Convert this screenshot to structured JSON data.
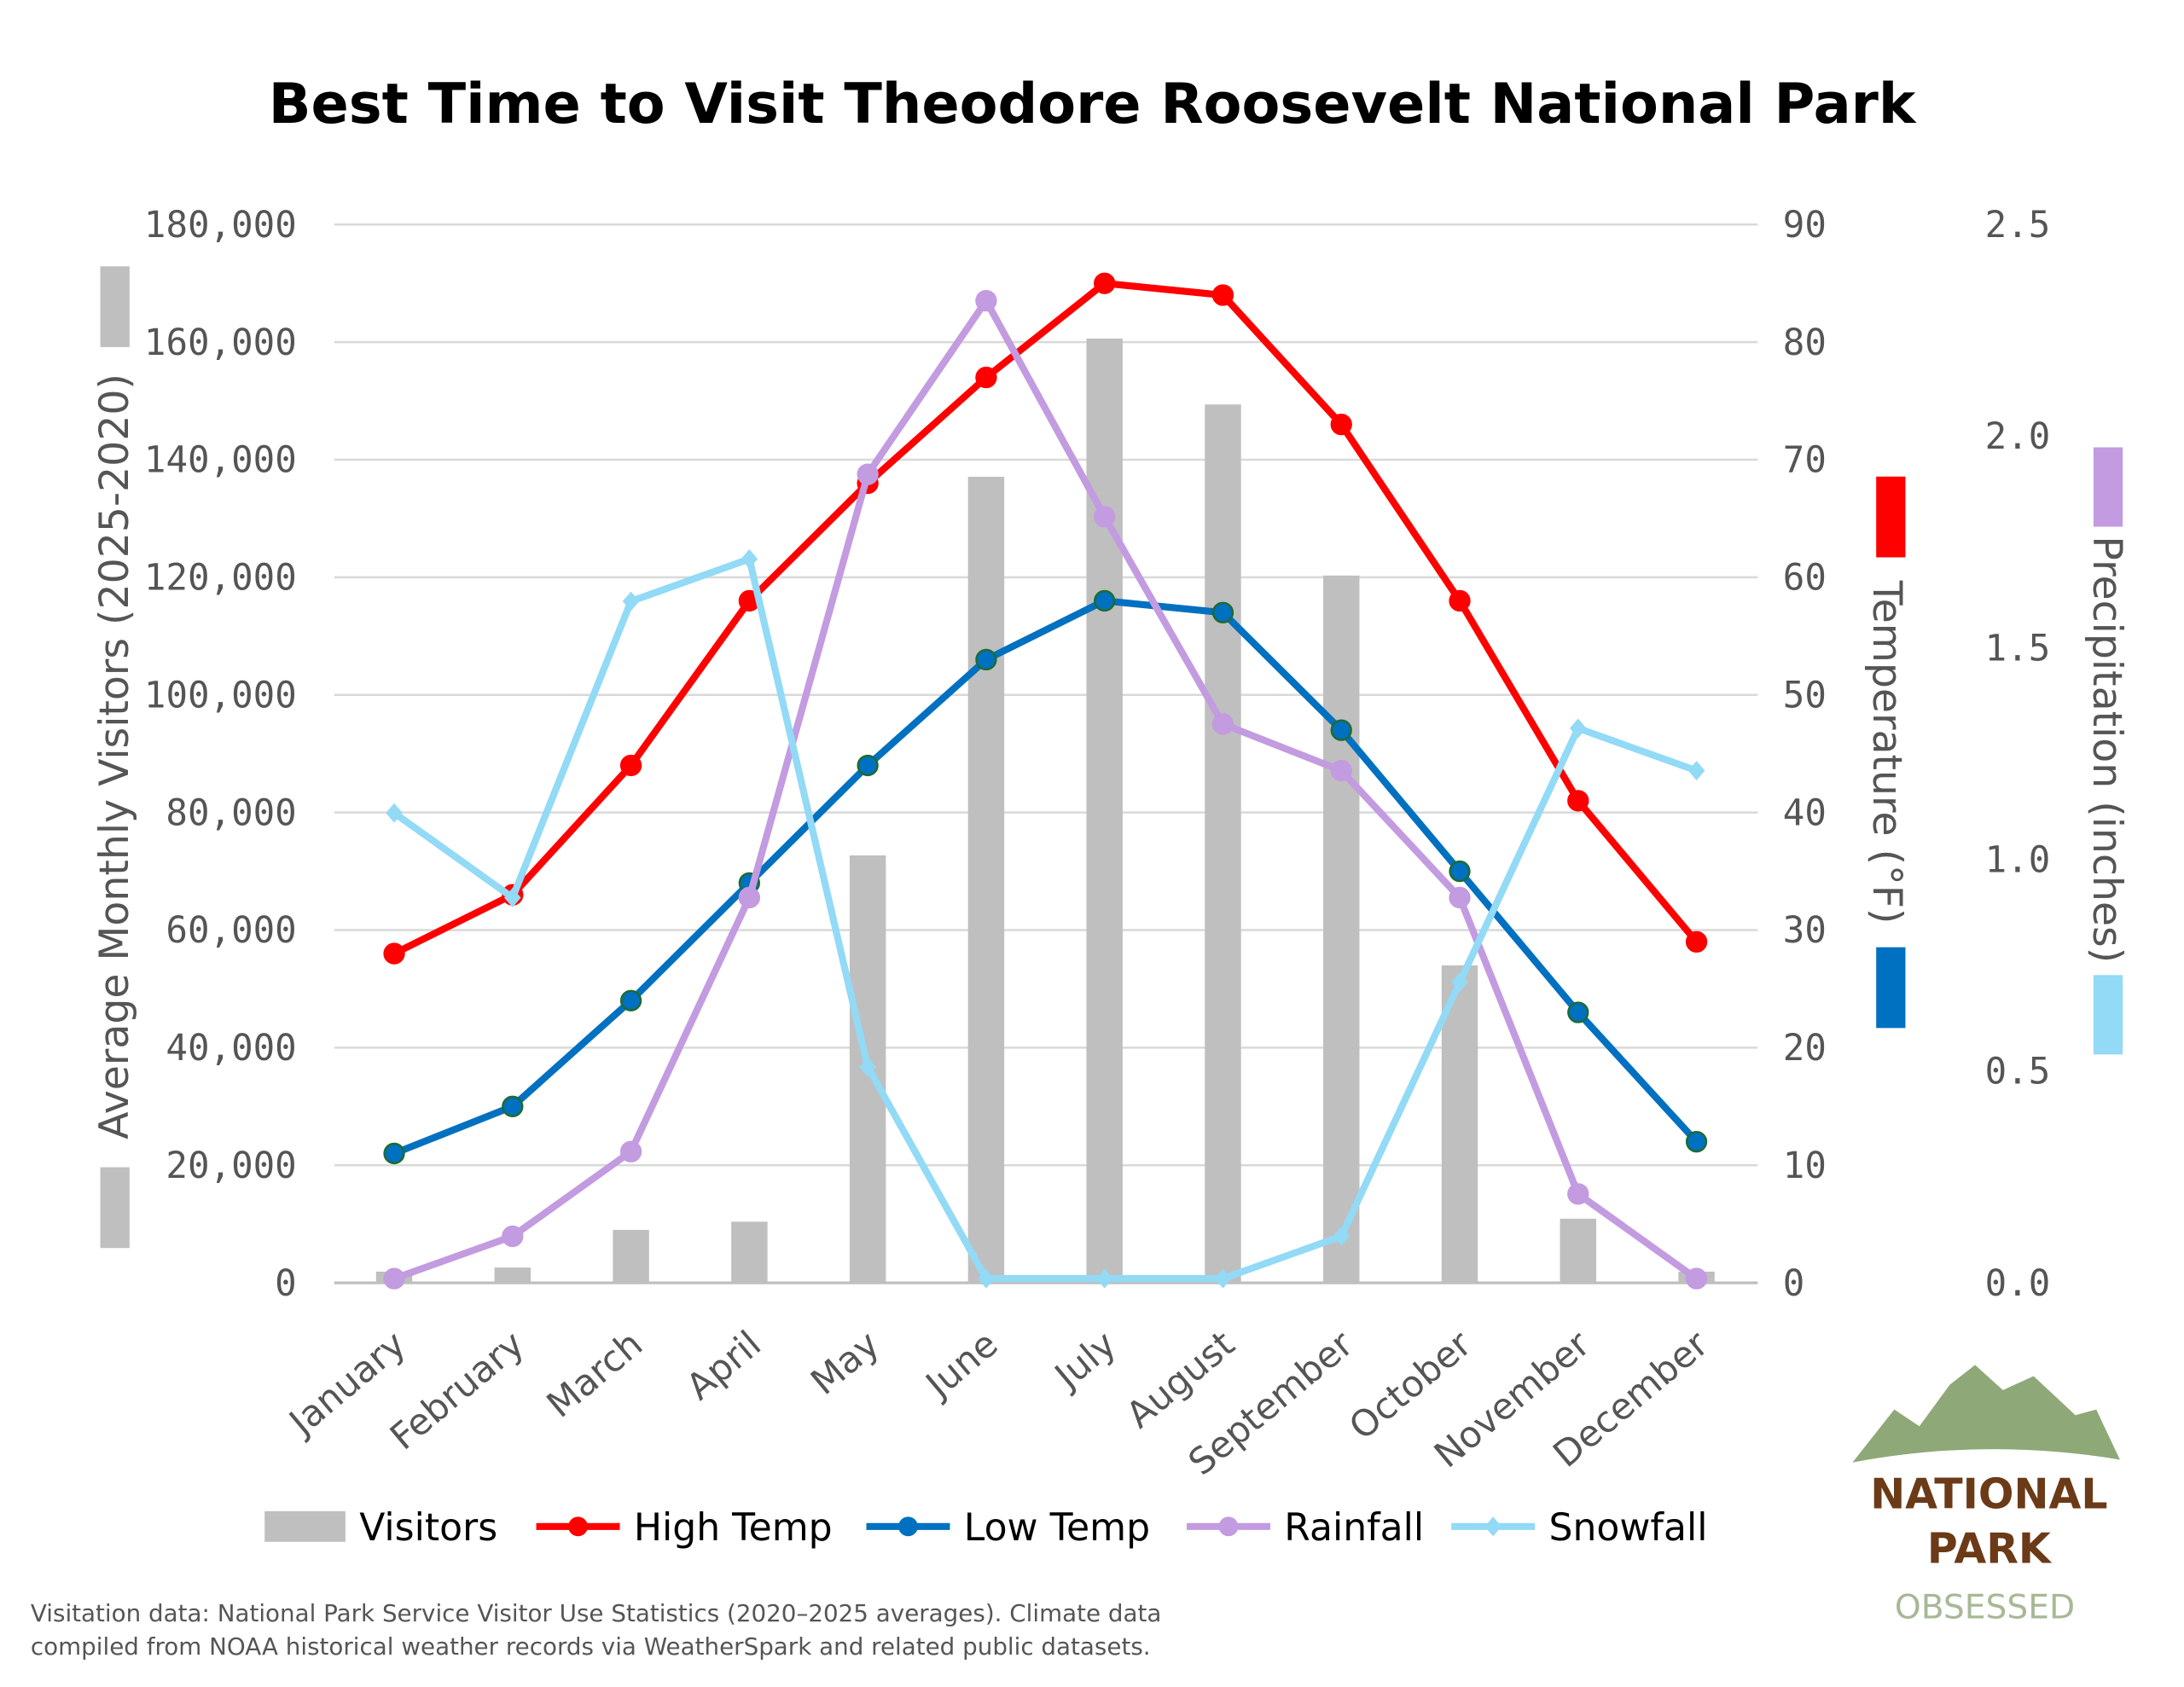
{
  "chart_data": {
    "type": "bar+line",
    "title": "Best Time to Visit Theodore Roosevelt National Park",
    "categories": [
      "January",
      "February",
      "March",
      "April",
      "May",
      "June",
      "July",
      "August",
      "September",
      "October",
      "November",
      "December"
    ],
    "axes": {
      "left": {
        "label": "Average Monthly Visitors (2025-2020)",
        "range": [
          0,
          180000
        ],
        "ticks": [
          "0",
          "20,000",
          "40,000",
          "60,000",
          "80,000",
          "100,000",
          "120,000",
          "140,000",
          "160,000",
          "180,000"
        ]
      },
      "right": {
        "label": "Temperature (°F)",
        "range": [
          0,
          90
        ],
        "ticks": [
          "0",
          "10",
          "20",
          "30",
          "40",
          "50",
          "60",
          "70",
          "80",
          "90"
        ]
      },
      "far_right": {
        "label": "Precipitation (inches)",
        "range": [
          0,
          2.5
        ],
        "ticks": [
          "0.0",
          "0.5",
          "1.0",
          "1.5",
          "2.0",
          "2.5"
        ]
      }
    },
    "grid": true,
    "legend_position": "bottom",
    "series": [
      {
        "name": "Visitors",
        "type": "bar",
        "axis": "left",
        "color": "#bfbfbf",
        "values": [
          1900,
          2600,
          9000,
          10400,
          72700,
          137100,
          160600,
          149400,
          120300,
          54000,
          10900,
          1900
        ]
      },
      {
        "name": "High Temp",
        "type": "line",
        "axis": "right",
        "color": "#ff0000",
        "marker": "circle",
        "values": [
          28,
          33,
          44,
          58,
          68,
          77,
          85,
          84,
          73,
          58,
          41,
          29
        ]
      },
      {
        "name": "Low Temp",
        "type": "line",
        "axis": "right",
        "color": "#0070c0",
        "marker": "circle",
        "values": [
          11,
          15,
          24,
          34,
          44,
          53,
          58,
          57,
          47,
          35,
          23,
          12
        ]
      },
      {
        "name": "Rainfall",
        "type": "line",
        "axis": "far_right",
        "color": "#c39be0",
        "marker": "circle",
        "values": [
          0.01,
          0.11,
          0.31,
          0.91,
          1.91,
          2.32,
          1.81,
          1.32,
          1.21,
          0.91,
          0.21,
          0.01
        ]
      },
      {
        "name": "Snowfall",
        "type": "line",
        "axis": "far_right",
        "color": "#92daf6",
        "marker": "diamond",
        "values": [
          1.11,
          0.91,
          1.61,
          1.71,
          0.51,
          0.01,
          0.01,
          0.01,
          0.11,
          0.71,
          1.31,
          1.21
        ]
      }
    ]
  },
  "footnote": {
    "line1": "Visitation data: National Park Service Visitor Use Statistics (2020–2025 averages). Climate data",
    "line2": "compiled from NOAA historical weather records via WeatherSpark and related public datasets."
  },
  "logo": {
    "line1": "NATIONAL",
    "line2": "PARK",
    "line3": "OBSESSED"
  }
}
